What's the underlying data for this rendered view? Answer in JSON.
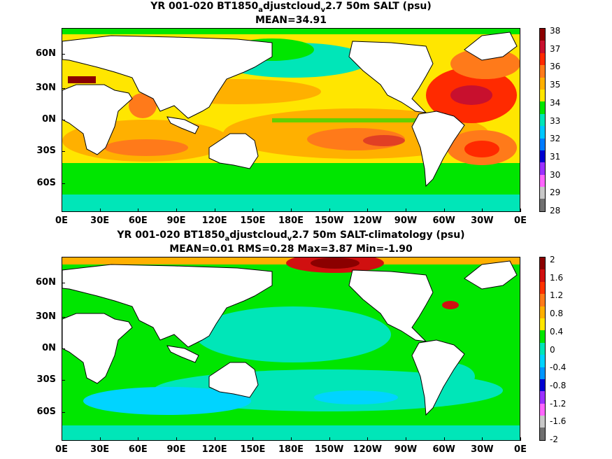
{
  "panel1": {
    "title_pre": "YR 001-020 BT1850",
    "title_sub1": "a",
    "title_mid": "djustcloud",
    "title_sub2": "v",
    "title_post": "2.7 50m SALT (psu)",
    "stats": "MEAN=34.91",
    "colorbar_labels": [
      "38",
      "37",
      "36",
      "35",
      "34",
      "33",
      "32",
      "31",
      "30",
      "29",
      "28"
    ],
    "colorbar_colors": [
      "#8b0000",
      "#c8102e",
      "#ff2a00",
      "#ff7a1a",
      "#ffb000",
      "#ffe600",
      "#00e600",
      "#00e6b8",
      "#00c8ff",
      "#007bff",
      "#0000d0",
      "#9b30ff",
      "#ff66ff",
      "#c8c8c8",
      "#707070"
    ]
  },
  "panel2": {
    "title_pre": "YR 001-020 BT1850",
    "title_sub1": "a",
    "title_mid": "djustcloud",
    "title_sub2": "v",
    "title_post": "2.7 50m SALT-climatology (psu)",
    "stats": "MEAN=0.01   RMS=0.28   Max=3.87   Min=-1.90",
    "colorbar_labels": [
      "2",
      "1.6",
      "1.2",
      "0.8",
      "0.4",
      "0",
      "-0.4",
      "-0.8",
      "-1.2",
      "-1.6",
      "-2"
    ],
    "colorbar_colors": [
      "#8b0000",
      "#d01010",
      "#ff3300",
      "#ff7a1a",
      "#ffb000",
      "#ffe600",
      "#00e600",
      "#00e6b8",
      "#00d4ff",
      "#0096ff",
      "#0000d0",
      "#9b30ff",
      "#ff66ff",
      "#c8c8c8",
      "#707070"
    ]
  },
  "axes": {
    "lat_labels": [
      "60N",
      "30N",
      "0N",
      "30S",
      "60S"
    ],
    "lon_labels": [
      "0E",
      "30E",
      "60E",
      "90E",
      "120E",
      "150E",
      "180E",
      "150W",
      "120W",
      "90W",
      "60W",
      "30W",
      "0E"
    ]
  },
  "colors": {
    "land": "#ffffff",
    "coast": "#000000"
  }
}
